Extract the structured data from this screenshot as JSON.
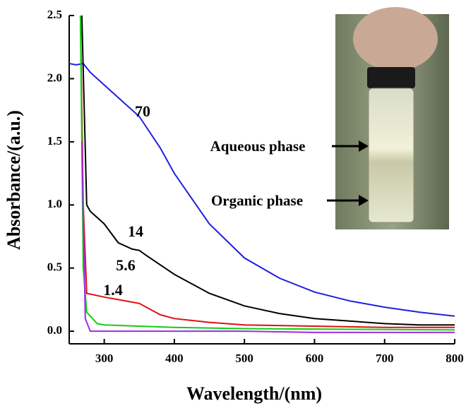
{
  "chart_data": {
    "type": "line",
    "xlabel": "Wavelength/(nm)",
    "ylabel": "Absorbance/(a.u.)",
    "xlim": [
      250,
      800
    ],
    "ylim": [
      -0.1,
      2.5
    ],
    "xticks": [
      300,
      400,
      500,
      600,
      700,
      800
    ],
    "yticks": [
      {
        "value": 0,
        "label": "0.0"
      },
      0.5,
      {
        "value": 1,
        "label": "1.0"
      },
      1.5,
      {
        "value": 2,
        "label": "2.0"
      },
      2.5
    ],
    "series": [
      {
        "name": "70",
        "color": "#1f1fe0",
        "x": [
          250,
          260,
          270,
          280,
          300,
          320,
          350,
          380,
          400,
          450,
          500,
          550,
          600,
          650,
          700,
          750,
          800
        ],
        "values": [
          2.12,
          2.11,
          2.12,
          2.05,
          1.95,
          1.85,
          1.7,
          1.45,
          1.25,
          0.85,
          0.58,
          0.42,
          0.31,
          0.24,
          0.19,
          0.15,
          0.12
        ]
      },
      {
        "name": "14",
        "color": "#000000",
        "x": [
          268,
          275,
          280,
          300,
          320,
          340,
          350,
          360,
          400,
          450,
          500,
          550,
          600,
          650,
          700,
          750,
          800
        ],
        "values": [
          2.5,
          1.0,
          0.95,
          0.85,
          0.7,
          0.65,
          0.64,
          0.6,
          0.45,
          0.3,
          0.2,
          0.14,
          0.1,
          0.08,
          0.06,
          0.05,
          0.05
        ]
      },
      {
        "name": "5.6",
        "color": "#e01010",
        "x": [
          266,
          270,
          275,
          300,
          320,
          350,
          380,
          400,
          450,
          500,
          600,
          700,
          800
        ],
        "values": [
          2.5,
          1.0,
          0.3,
          0.27,
          0.25,
          0.22,
          0.13,
          0.1,
          0.07,
          0.05,
          0.04,
          0.03,
          0.03
        ]
      },
      {
        "name": "1.4",
        "color": "#10d010",
        "x": [
          266,
          270,
          275,
          290,
          300,
          400,
          500,
          800
        ],
        "values": [
          2.5,
          0.5,
          0.15,
          0.06,
          0.05,
          0.03,
          0.02,
          0.01
        ]
      },
      {
        "color": "#9a2ee0",
        "x": [
          268,
          273,
          280,
          300,
          400,
          500,
          600,
          700,
          800
        ],
        "values": [
          1.5,
          0.1,
          0.0,
          0.0,
          0.0,
          0.0,
          -0.01,
          -0.01,
          -0.01
        ]
      }
    ],
    "annotations": [
      "Aqueous phase",
      "Organic phase"
    ]
  }
}
